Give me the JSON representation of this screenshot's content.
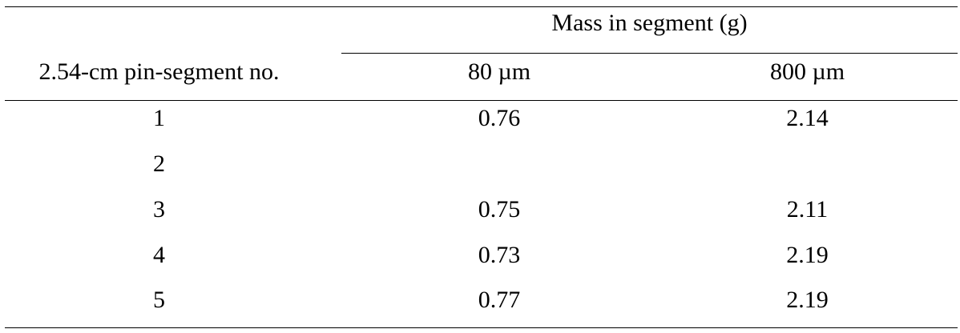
{
  "table": {
    "row_header": "2.54-cm pin-segment no.",
    "group_header": "Mass in segment (g)",
    "columns": [
      "80 µm",
      "800 µm"
    ],
    "rows": [
      {
        "segment": "1",
        "v80": "0.76",
        "v800": "2.14"
      },
      {
        "segment": "2",
        "v80": "",
        "v800": ""
      },
      {
        "segment": "3",
        "v80": "0.75",
        "v800": "2.11"
      },
      {
        "segment": "4",
        "v80": "0.73",
        "v800": "2.19"
      },
      {
        "segment": "5",
        "v80": "0.77",
        "v800": "2.19"
      }
    ]
  }
}
